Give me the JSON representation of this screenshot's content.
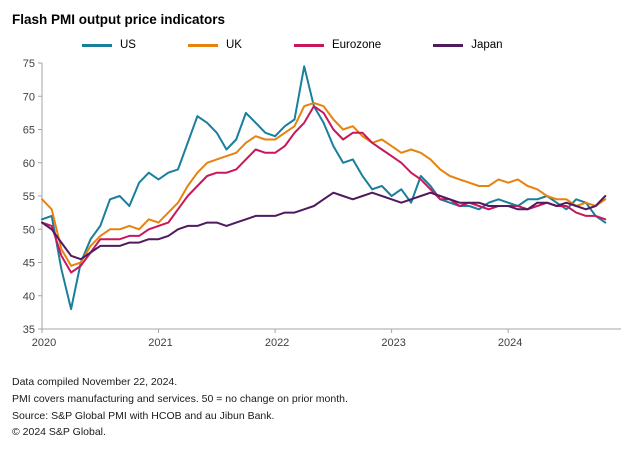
{
  "title": "Flash PMI output price indicators",
  "footer": {
    "lines": [
      "Data compiled November 22, 2024.",
      "PMI covers manufacturing and services. 50 = no change on prior month.",
      "Source: S&P Global PMI with HCOB and au Jibun Bank.",
      "© 2024 S&P Global."
    ]
  },
  "chart_data": {
    "type": "line",
    "title": "Flash PMI output price indicators",
    "grid": false,
    "legend_position": "top",
    "ylim": [
      35,
      75
    ],
    "y_ticks": [
      35,
      40,
      45,
      50,
      55,
      60,
      65,
      70,
      75
    ],
    "x_tick_labels": [
      "2020",
      "2021",
      "2022",
      "2023",
      "2024"
    ],
    "x_tick_positions": [
      0,
      12,
      24,
      36,
      48
    ],
    "x": [
      "2020-01",
      "2020-02",
      "2020-03",
      "2020-04",
      "2020-05",
      "2020-06",
      "2020-07",
      "2020-08",
      "2020-09",
      "2020-10",
      "2020-11",
      "2020-12",
      "2021-01",
      "2021-02",
      "2021-03",
      "2021-04",
      "2021-05",
      "2021-06",
      "2021-07",
      "2021-08",
      "2021-09",
      "2021-10",
      "2021-11",
      "2021-12",
      "2022-01",
      "2022-02",
      "2022-03",
      "2022-04",
      "2022-05",
      "2022-06",
      "2022-07",
      "2022-08",
      "2022-09",
      "2022-10",
      "2022-11",
      "2022-12",
      "2023-01",
      "2023-02",
      "2023-03",
      "2023-04",
      "2023-05",
      "2023-06",
      "2023-07",
      "2023-08",
      "2023-09",
      "2023-10",
      "2023-11",
      "2023-12",
      "2024-01",
      "2024-02",
      "2024-03",
      "2024-04",
      "2024-05",
      "2024-06",
      "2024-07",
      "2024-08",
      "2024-09",
      "2024-10",
      "2024-11"
    ],
    "series": [
      {
        "name": "US",
        "color": "#1a7f9c",
        "values": [
          51.5,
          52.0,
          44.0,
          38.0,
          45.0,
          48.5,
          50.5,
          54.5,
          55.0,
          53.5,
          57.0,
          58.5,
          57.5,
          58.5,
          59.0,
          63.0,
          67.0,
          66.0,
          64.5,
          62.0,
          63.5,
          67.5,
          66.0,
          64.5,
          64.0,
          65.5,
          66.5,
          74.5,
          68.5,
          66.0,
          62.5,
          60.0,
          60.5,
          58.0,
          56.0,
          56.5,
          55.0,
          56.0,
          54.0,
          58.0,
          56.5,
          54.5,
          54.0,
          53.5,
          53.5,
          53.0,
          54.0,
          54.5,
          54.0,
          53.5,
          54.5,
          54.5,
          55.0,
          54.0,
          53.0,
          54.5,
          54.0,
          52.0,
          51.0
        ]
      },
      {
        "name": "UK",
        "color": "#e8820e",
        "values": [
          54.5,
          53.0,
          47.0,
          44.5,
          45.0,
          47.5,
          49.0,
          50.0,
          50.0,
          50.5,
          50.0,
          51.5,
          51.0,
          52.5,
          54.0,
          56.5,
          58.5,
          60.0,
          60.5,
          61.0,
          61.5,
          63.0,
          64.0,
          63.5,
          63.5,
          64.5,
          65.5,
          68.5,
          69.0,
          68.5,
          66.5,
          65.0,
          65.5,
          64.0,
          63.0,
          63.5,
          62.5,
          61.5,
          62.0,
          61.5,
          60.5,
          59.0,
          58.0,
          57.5,
          57.0,
          56.5,
          56.5,
          57.5,
          57.0,
          57.5,
          56.5,
          56.0,
          55.0,
          54.5,
          54.5,
          53.5,
          54.0,
          53.5,
          54.5
        ]
      },
      {
        "name": "Eurozone",
        "color": "#c8175d",
        "values": [
          51.0,
          50.5,
          46.0,
          43.5,
          44.5,
          46.5,
          48.5,
          48.5,
          48.5,
          49.0,
          49.0,
          50.0,
          50.5,
          51.0,
          53.0,
          55.0,
          56.5,
          58.0,
          58.5,
          58.5,
          59.0,
          60.5,
          62.0,
          61.5,
          61.5,
          62.5,
          64.5,
          66.0,
          68.5,
          67.5,
          65.0,
          63.5,
          64.5,
          64.5,
          63.0,
          62.0,
          61.0,
          60.0,
          58.5,
          57.5,
          56.0,
          54.5,
          54.5,
          53.5,
          54.0,
          53.5,
          53.0,
          53.5,
          53.5,
          53.5,
          53.0,
          53.5,
          54.0,
          53.5,
          53.5,
          52.5,
          52.0,
          52.0,
          51.5
        ]
      },
      {
        "name": "Japan",
        "color": "#4f1a5e",
        "values": [
          51.0,
          50.0,
          48.0,
          46.0,
          45.5,
          46.5,
          47.5,
          47.5,
          47.5,
          48.0,
          48.0,
          48.5,
          48.5,
          49.0,
          50.0,
          50.5,
          50.5,
          51.0,
          51.0,
          50.5,
          51.0,
          51.5,
          52.0,
          52.0,
          52.0,
          52.5,
          52.5,
          53.0,
          53.5,
          54.5,
          55.5,
          55.0,
          54.5,
          55.0,
          55.5,
          55.0,
          54.5,
          54.0,
          54.5,
          55.0,
          55.5,
          55.0,
          54.5,
          54.0,
          54.0,
          54.0,
          53.5,
          53.5,
          53.5,
          53.0,
          53.0,
          54.0,
          54.0,
          53.5,
          54.0,
          53.5,
          53.0,
          53.5,
          55.0
        ]
      }
    ]
  }
}
